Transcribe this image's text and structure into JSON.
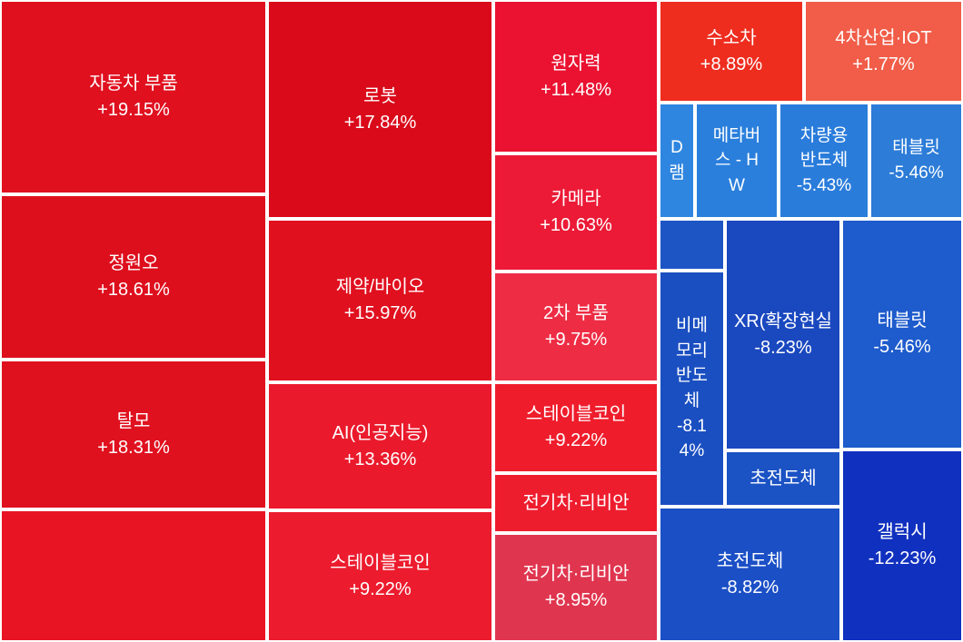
{
  "chart_data": {
    "type": "treemap",
    "title": "",
    "tiles": [
      {
        "name": "자동차 부품",
        "value": "+19.15%",
        "change": 19.15,
        "color": "#e0101f"
      },
      {
        "name": "정원오",
        "value": "+18.61%",
        "change": 18.61,
        "color": "#de0f1d"
      },
      {
        "name": "탈모",
        "value": "+18.31%",
        "change": 18.31,
        "color": "#e0111f"
      },
      {
        "name": "",
        "value": "",
        "change": null,
        "color": "#e81424"
      },
      {
        "name": "로봇",
        "value": "+17.84%",
        "change": 17.84,
        "color": "#da0a1a"
      },
      {
        "name": "제약/바이오",
        "value": "+15.97%",
        "change": 15.97,
        "color": "#e0101f"
      },
      {
        "name": "AI(인공지능)",
        "value": "+13.36%",
        "change": 13.36,
        "color": "#ea1a2c"
      },
      {
        "name": "스테이블코인",
        "value": "+9.22%",
        "change": 9.22,
        "color": "#ec1c2e"
      },
      {
        "name": "원자력",
        "value": "+11.48%",
        "change": 11.48,
        "color": "#ea1230"
      },
      {
        "name": "카메라",
        "value": "+10.63%",
        "change": 10.63,
        "color": "#ec1a36"
      },
      {
        "name": "2차 부품",
        "value": "+9.75%",
        "change": 9.75,
        "color": "#ee2c44"
      },
      {
        "name": "스테이블코인",
        "value": "+9.22%",
        "change": 9.22,
        "color": "#ef1d2c"
      },
      {
        "name": "전기차·리비안",
        "value": "",
        "change": null,
        "color": "#ee1d2e"
      },
      {
        "name": "전기차·리비안",
        "value": "+8.95%",
        "change": 8.95,
        "color": "#e0354f"
      },
      {
        "name": "수소차",
        "value": "+8.89%",
        "change": 8.89,
        "color": "#ee2d1f"
      },
      {
        "name": "4차산업·IOT",
        "value": "+1.77%",
        "change": 1.77,
        "color": "#f15d48"
      },
      {
        "name": "D\n램",
        "value": "",
        "change": null,
        "color": "#2f86e0"
      },
      {
        "name": "메타버\n스 - H\nW",
        "value": "",
        "change": null,
        "color": "#2a7fdc"
      },
      {
        "name": "차량용\n반도체",
        "value": "-5.43%",
        "change": -5.43,
        "color": "#2a7cdb"
      },
      {
        "name": "태블릿",
        "value": "-5.46%",
        "change": -5.46,
        "color": "#2c7cd8"
      },
      {
        "name": "",
        "value": "",
        "change": null,
        "color": "#1d55c4"
      },
      {
        "name": "비메\n모리\n반도\n체",
        "value": "-8.1\n4%",
        "change": -8.14,
        "color": "#1a4fc1"
      },
      {
        "name": "XR(확장현실",
        "value": "-8.23%",
        "change": -8.23,
        "color": "#1a48bf"
      },
      {
        "name": "초전도체",
        "value": "",
        "change": null,
        "color": "#1b52c4"
      },
      {
        "name": "태블릿",
        "value": "-5.46%",
        "change": -5.46,
        "color": "#1e5bcc"
      },
      {
        "name": "초전도체",
        "value": "-8.82%",
        "change": -8.82,
        "color": "#1b4fc6"
      },
      {
        "name": "갤럭시",
        "value": "-12.23%",
        "change": -12.23,
        "color": "#1030bf"
      }
    ]
  }
}
